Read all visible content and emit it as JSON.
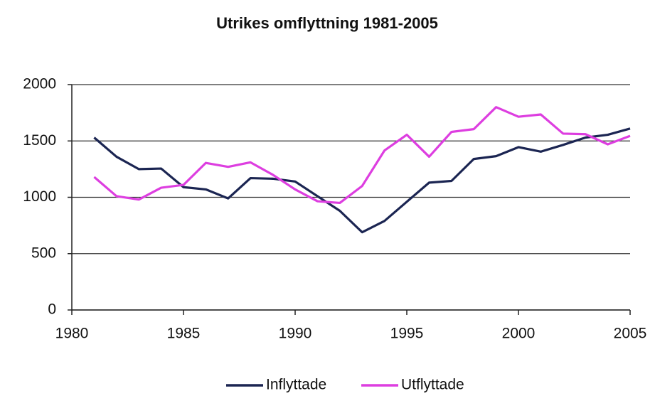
{
  "chart_data": {
    "type": "line",
    "title": "Utrikes omflyttning 1981-2005",
    "x": [
      1981,
      1982,
      1983,
      1984,
      1985,
      1986,
      1987,
      1988,
      1989,
      1990,
      1991,
      1992,
      1993,
      1994,
      1995,
      1996,
      1997,
      1998,
      1999,
      2000,
      2001,
      2002,
      2003,
      2004,
      2005
    ],
    "series": [
      {
        "name": "Inflyttade",
        "color": "#1b2552",
        "values": [
          1530,
          1360,
          1250,
          1255,
          1090,
          1070,
          990,
          1170,
          1165,
          1140,
          1010,
          880,
          690,
          790,
          960,
          1130,
          1145,
          1340,
          1365,
          1445,
          1405,
          1465,
          1530,
          1555,
          1610
        ]
      },
      {
        "name": "Utflyttade",
        "color": "#dd3ee0",
        "values": [
          1180,
          1010,
          980,
          1085,
          1110,
          1305,
          1270,
          1310,
          1200,
          1070,
          965,
          950,
          1100,
          1415,
          1555,
          1360,
          1580,
          1605,
          1800,
          1715,
          1735,
          1565,
          1560,
          1470,
          1545
        ]
      }
    ],
    "xlim": [
      1980,
      2005
    ],
    "xticks": [
      1980,
      1985,
      1990,
      1995,
      2000,
      2005
    ],
    "ylim": [
      0,
      2000
    ],
    "yticks": [
      0,
      500,
      1000,
      1500,
      2000
    ],
    "grid": true,
    "legend": "bottom"
  }
}
